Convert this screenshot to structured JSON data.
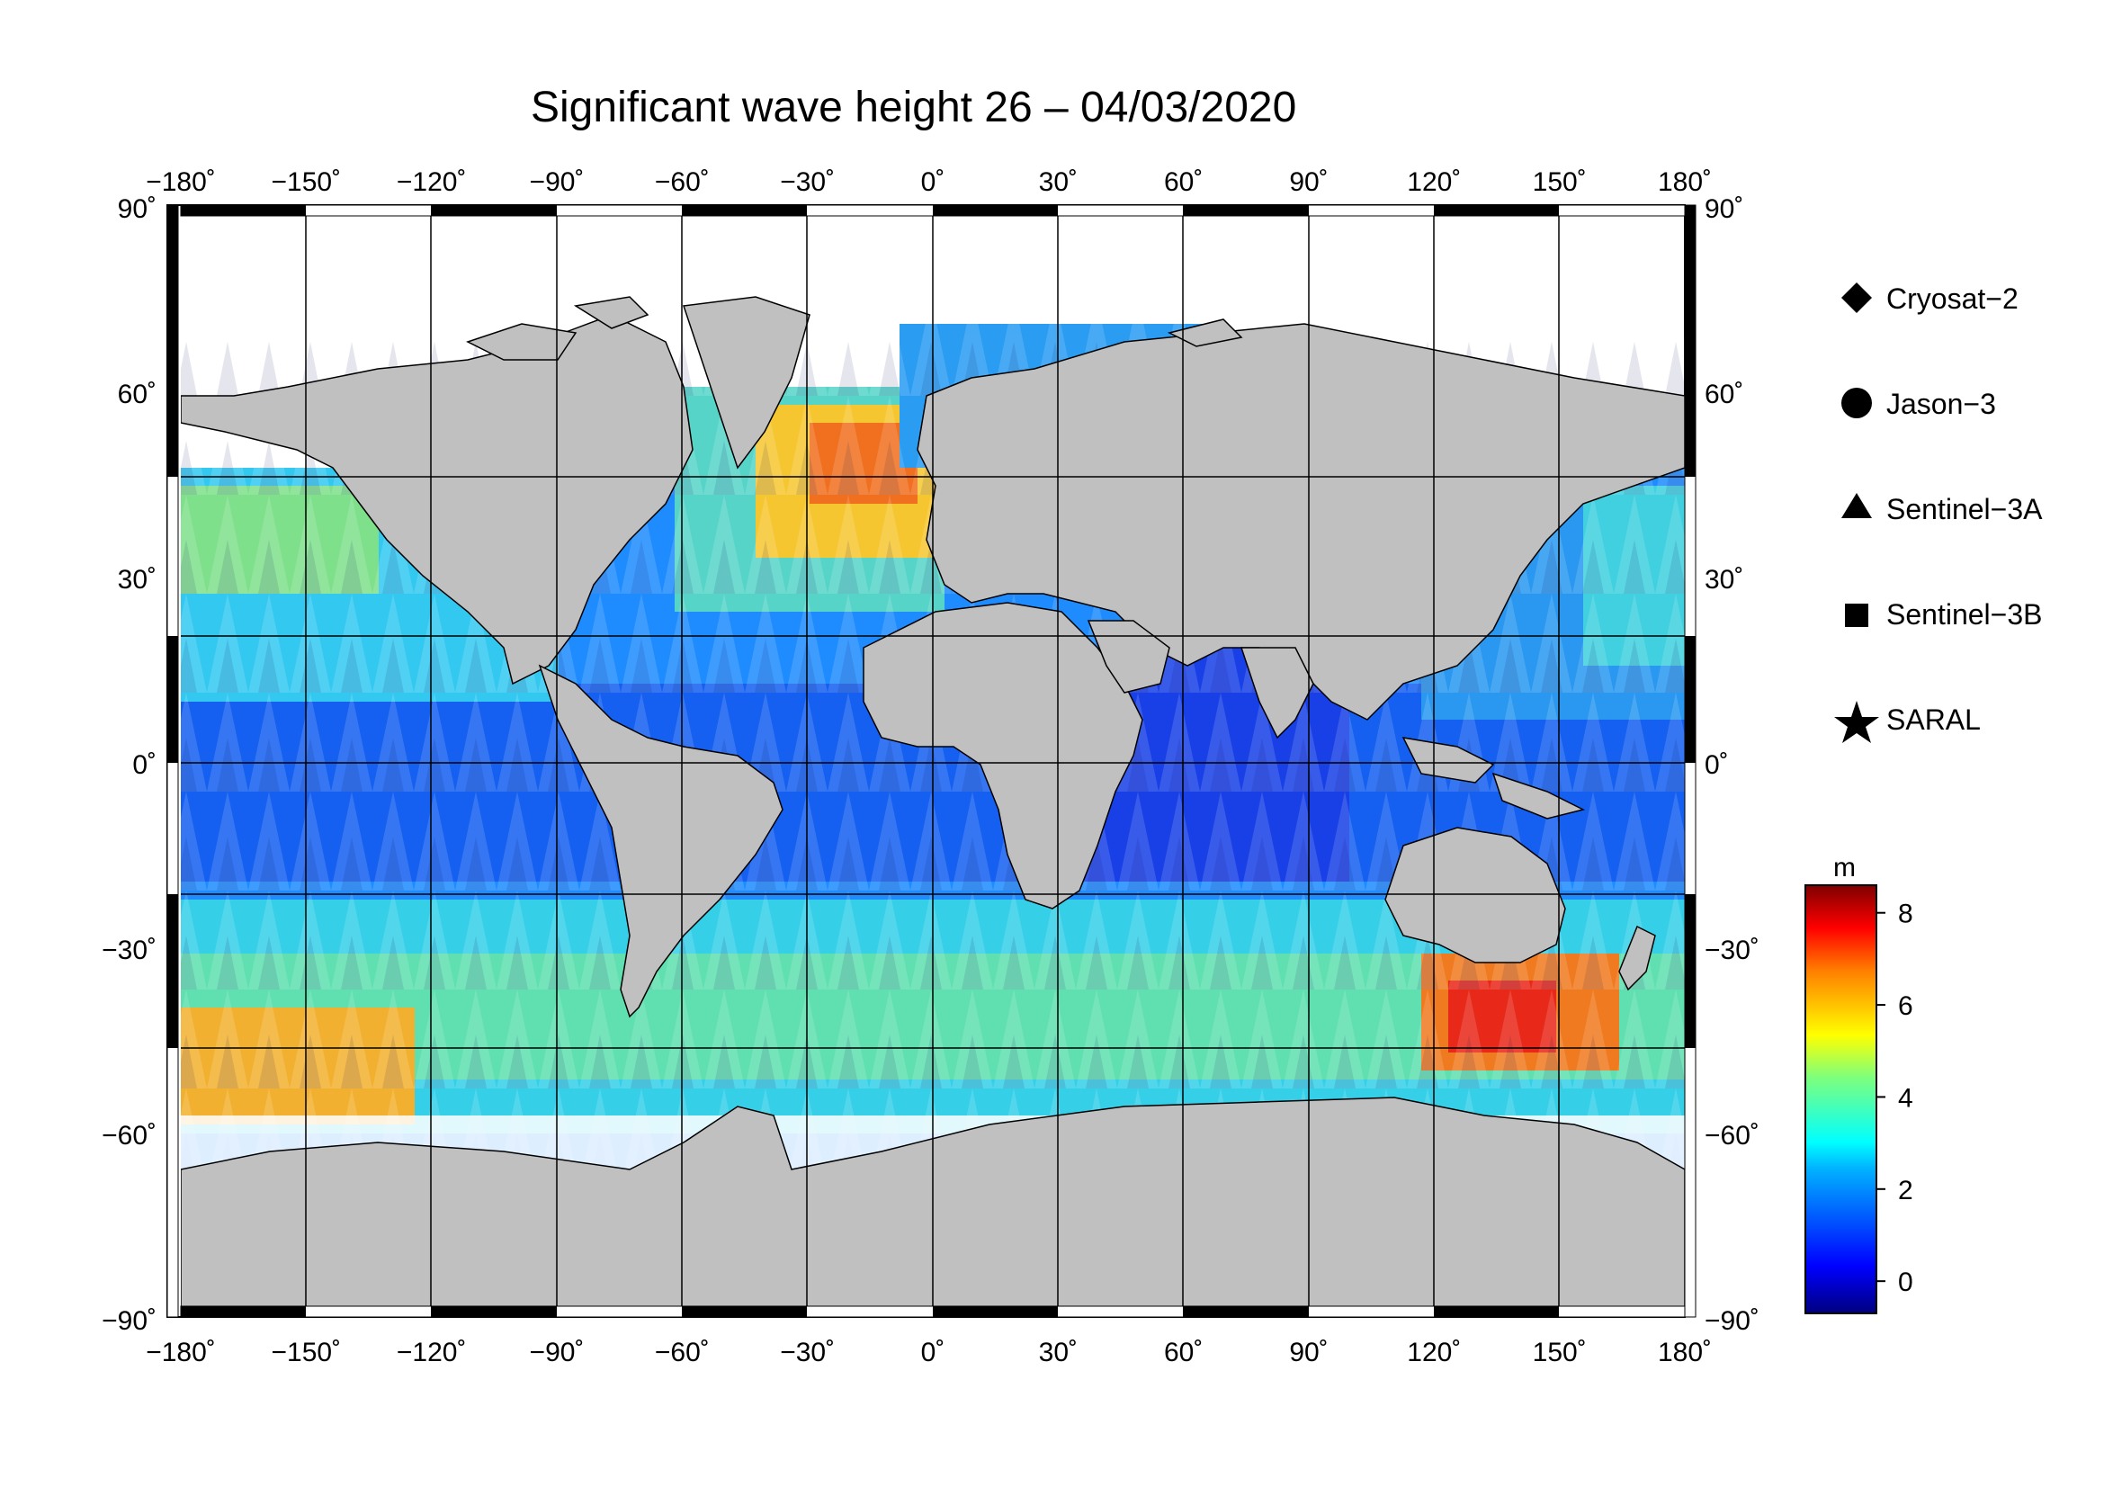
{
  "title": "Significant wave height 26 – 04/03/2020",
  "map": {
    "projection": "equirectangular",
    "lon_range": [
      -180,
      180
    ],
    "lat_range": [
      -90,
      90
    ],
    "lon_ticks": [
      "−180˚",
      "−150˚",
      "−120˚",
      "−90˚",
      "−60˚",
      "−30˚",
      "0˚",
      "30˚",
      "60˚",
      "90˚",
      "120˚",
      "150˚",
      "180˚"
    ],
    "lat_ticks": [
      "90˚",
      "60˚",
      "30˚",
      "0˚",
      "−30˚",
      "−60˚",
      "−90˚"
    ],
    "lon_values": [
      -180,
      -150,
      -120,
      -90,
      -60,
      -30,
      0,
      30,
      60,
      90,
      120,
      150,
      180
    ],
    "lat_values": [
      90,
      60,
      30,
      0,
      -30,
      -60,
      -90
    ],
    "grid": true,
    "land_color": "#c0c0c0",
    "ice_color": "#ffffff"
  },
  "legend": {
    "placement": "right",
    "items": [
      {
        "label": "Cryosat−2",
        "icon": "diamond-icon"
      },
      {
        "label": "Jason−3",
        "icon": "circle-icon"
      },
      {
        "label": "Sentinel−3A",
        "icon": "triangle-icon"
      },
      {
        "label": "Sentinel−3B",
        "icon": "square-icon"
      },
      {
        "label": "SARAL",
        "icon": "star-icon"
      }
    ]
  },
  "colorbar": {
    "unit": "m",
    "range": [
      -0.7,
      8.6
    ],
    "ticks": [
      "0",
      "2",
      "4",
      "6",
      "8"
    ],
    "tick_values": [
      0,
      2,
      4,
      6,
      8
    ],
    "colormap": "jet"
  }
}
